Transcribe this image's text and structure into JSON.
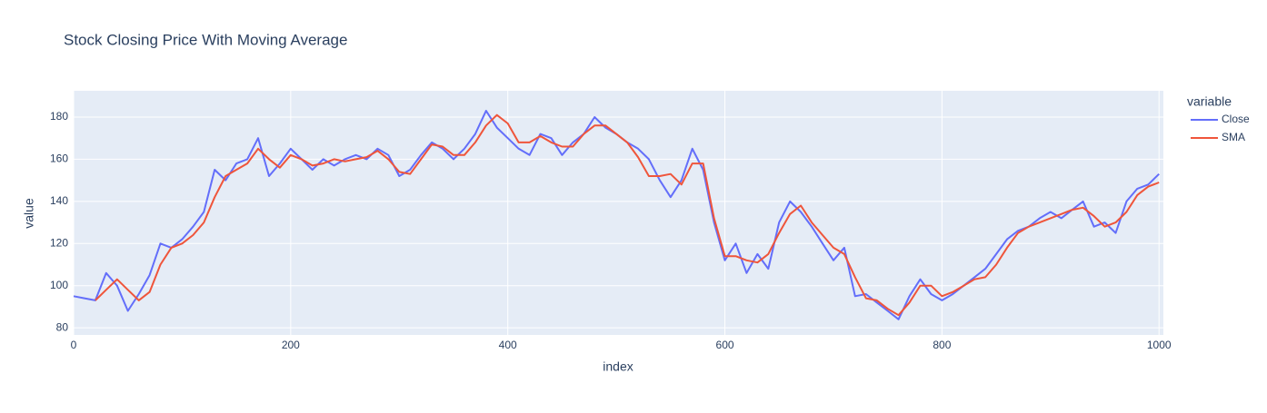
{
  "chart_data": {
    "type": "line",
    "title": "Stock Closing Price With Moving Average",
    "x_label": "index",
    "y_label": "value",
    "legend_title": "variable",
    "legend_position": "right",
    "grid": true,
    "x": [
      0,
      10,
      20,
      30,
      40,
      50,
      60,
      70,
      80,
      90,
      100,
      110,
      120,
      130,
      140,
      150,
      160,
      170,
      180,
      190,
      200,
      210,
      220,
      230,
      240,
      250,
      260,
      270,
      280,
      290,
      300,
      310,
      320,
      330,
      340,
      350,
      360,
      370,
      380,
      390,
      400,
      410,
      420,
      430,
      440,
      450,
      460,
      470,
      480,
      490,
      500,
      510,
      520,
      530,
      540,
      550,
      560,
      570,
      580,
      590,
      600,
      610,
      620,
      630,
      640,
      650,
      660,
      670,
      680,
      690,
      700,
      710,
      720,
      730,
      740,
      750,
      760,
      770,
      780,
      790,
      800,
      810,
      820,
      830,
      840,
      850,
      860,
      870,
      880,
      890,
      900,
      910,
      920,
      930,
      940,
      950,
      960,
      970,
      980,
      990,
      1000
    ],
    "series": [
      {
        "name": "Close",
        "color": "#636efa",
        "values": [
          95,
          94,
          93,
          106,
          100,
          88,
          96,
          105,
          120,
          118,
          122,
          128,
          135,
          155,
          150,
          158,
          160,
          170,
          152,
          158,
          165,
          160,
          155,
          160,
          157,
          160,
          162,
          160,
          165,
          162,
          152,
          155,
          162,
          168,
          165,
          160,
          165,
          172,
          183,
          175,
          170,
          165,
          162,
          172,
          170,
          162,
          168,
          172,
          180,
          175,
          172,
          168,
          165,
          160,
          150,
          142,
          150,
          165,
          155,
          130,
          112,
          120,
          106,
          115,
          108,
          130,
          140,
          135,
          128,
          120,
          112,
          118,
          95,
          96,
          92,
          88,
          84,
          95,
          103,
          96,
          93,
          96,
          100,
          104,
          108,
          115,
          122,
          126,
          128,
          132,
          135,
          132,
          136,
          140,
          128,
          130,
          125,
          140,
          146,
          148,
          153
        ]
      },
      {
        "name": "SMA",
        "color": "#ef553b",
        "values": [
          null,
          null,
          93,
          98,
          103,
          98,
          93,
          97,
          110,
          118,
          120,
          124,
          130,
          142,
          152,
          155,
          158,
          165,
          160,
          156,
          162,
          160,
          157,
          158,
          160,
          159,
          160,
          161,
          164,
          160,
          154,
          153,
          160,
          167,
          166,
          162,
          162,
          168,
          176,
          181,
          177,
          168,
          168,
          171,
          168,
          166,
          166,
          172,
          176,
          176,
          172,
          168,
          161,
          152,
          152,
          153,
          148,
          158,
          158,
          132,
          114,
          114,
          112,
          111,
          115,
          125,
          134,
          138,
          130,
          124,
          118,
          115,
          104,
          94,
          93,
          89,
          86,
          92,
          100,
          100,
          95,
          97,
          100,
          103,
          104,
          110,
          118,
          125,
          128,
          130,
          132,
          134,
          136,
          137,
          133,
          128,
          130,
          135,
          143,
          147,
          149
        ]
      }
    ],
    "xlim": [
      0,
      1004
    ],
    "ylim": [
      76.6,
      192.5
    ],
    "xticks": [
      0,
      200,
      400,
      600,
      800,
      1000
    ],
    "yticks": [
      80,
      100,
      120,
      140,
      160,
      180
    ]
  }
}
